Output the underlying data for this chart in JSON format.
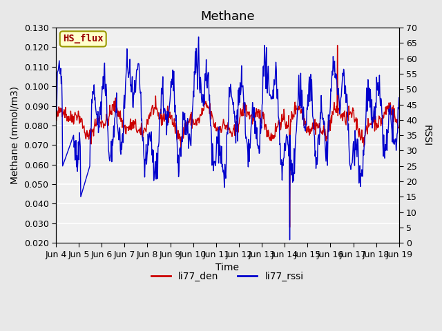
{
  "title": "Methane",
  "ylabel_left": "Methane (mmol/m3)",
  "ylabel_right": "RSSI",
  "xlabel": "Time",
  "ylim_left": [
    0.02,
    0.13
  ],
  "ylim_right": [
    0,
    70
  ],
  "yticks_left": [
    0.02,
    0.03,
    0.04,
    0.05,
    0.06,
    0.07,
    0.08,
    0.09,
    0.1,
    0.11,
    0.12,
    0.13
  ],
  "yticks_right": [
    0,
    5,
    10,
    15,
    20,
    25,
    30,
    35,
    40,
    45,
    50,
    55,
    60,
    65,
    70
  ],
  "xtick_labels": [
    "Jun 4",
    "Jun 5",
    "Jun 6",
    "Jun 7",
    "Jun 8",
    "Jun 9",
    "Jun 10",
    "Jun 11",
    "Jun 12",
    "Jun 13",
    "Jun 14",
    "Jun 15",
    "Jun 16",
    "Jun 17",
    "Jun 18",
    "Jun 19"
  ],
  "color_red": "#cc0000",
  "color_blue": "#0000cc",
  "legend_label_red": "li77_den",
  "legend_label_blue": "li77_rssi",
  "hs_flux_label": "HS_flux",
  "hs_flux_bg": "#ffffcc",
  "hs_flux_border": "#999900",
  "hs_flux_text_color": "#990000",
  "background_color": "#e8e8e8",
  "plot_bg_color": "#f0f0f0",
  "grid_color": "#ffffff",
  "title_fontsize": 13,
  "axis_label_fontsize": 10,
  "tick_fontsize": 9,
  "legend_fontsize": 10
}
